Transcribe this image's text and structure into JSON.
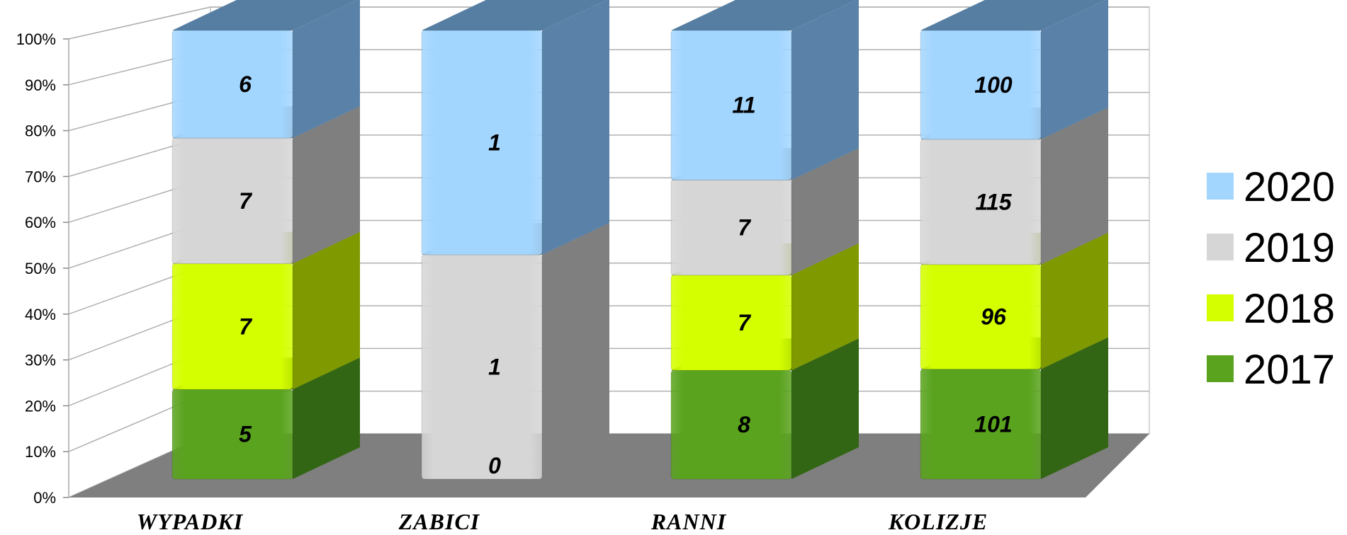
{
  "chart_data": {
    "type": "bar",
    "stacked": "percent",
    "three_d": true,
    "title": "",
    "xlabel": "",
    "ylabel": "",
    "categories": [
      "WYPADKI",
      "ZABICI",
      "RANNI",
      "KOLIZJE"
    ],
    "series": [
      {
        "name": "2017",
        "values": [
          5,
          0,
          8,
          101
        ],
        "color": "#5aa31e",
        "side": "#336614",
        "top": "#2e5c12"
      },
      {
        "name": "2018",
        "values": [
          7,
          0,
          7,
          96
        ],
        "color": "#d4ff00",
        "side": "#7f9900",
        "top": "#7a9400"
      },
      {
        "name": "2019",
        "values": [
          7,
          1,
          7,
          115
        ],
        "color": "#d6d6d6",
        "side": "#7f7f7f",
        "top": "#7a7a7a"
      },
      {
        "name": "2020",
        "values": [
          6,
          1,
          11,
          100
        ],
        "color": "#a3d6ff",
        "side": "#5a82a8",
        "top": "#567ea2"
      }
    ],
    "yticks": [
      "0%",
      "10%",
      "20%",
      "30%",
      "40%",
      "50%",
      "60%",
      "70%",
      "80%",
      "90%",
      "100%"
    ],
    "ylim": [
      0,
      100
    ],
    "grid": true,
    "legend": "right",
    "floor_color": "#7f7f7f"
  }
}
